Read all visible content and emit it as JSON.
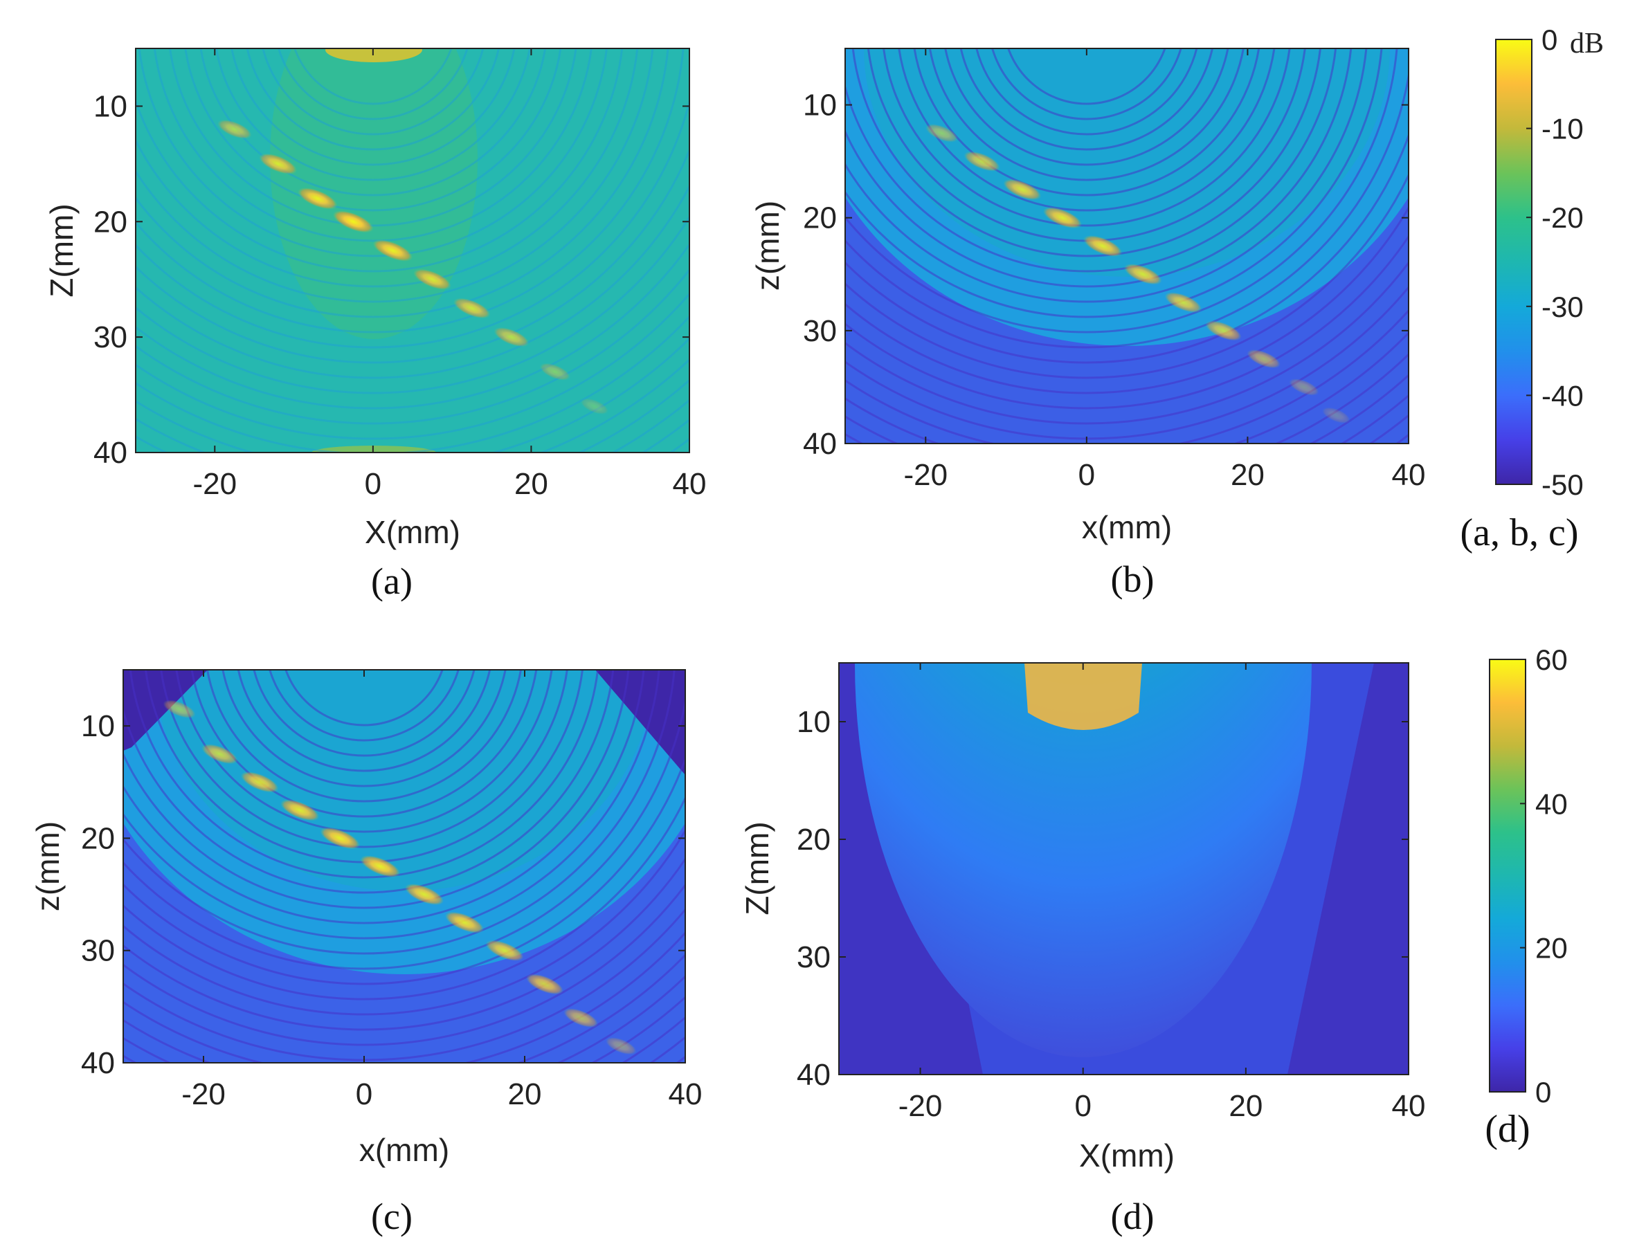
{
  "figure": {
    "panel_label_abc_cbar": "(a, b, c)",
    "panel_label_d_cbar": "(d)",
    "colorbar_abc": {
      "ticks": [
        "0",
        "-10",
        "-20",
        "-30",
        "-40",
        "-50"
      ],
      "unit": "dB",
      "range": [
        -50,
        0
      ]
    },
    "colorbar_d": {
      "ticks": [
        "0",
        "20",
        "40",
        "60"
      ],
      "range": [
        0,
        60
      ]
    }
  },
  "chart_data": [
    {
      "id": "a",
      "type": "heatmap",
      "caption": "(a)",
      "xlabel": "X(mm)",
      "ylabel": "Z(mm)",
      "xlim": [
        -30,
        40
      ],
      "ylim": [
        40,
        5
      ],
      "xticks": [
        -20,
        0,
        20,
        40
      ],
      "yticks": [
        10,
        20,
        30,
        40
      ],
      "background_level_db": -22,
      "reflectors": [
        [
          -17.5,
          12
        ],
        [
          -12,
          15
        ],
        [
          -7,
          18
        ],
        [
          -2.5,
          20
        ],
        [
          2.5,
          22.5
        ],
        [
          7.5,
          25
        ],
        [
          12.5,
          27.5
        ],
        [
          17.5,
          30
        ],
        [
          23,
          33
        ],
        [
          28,
          36
        ]
      ],
      "reflector_peak_db": [
        -8,
        -4,
        -2,
        -1,
        -2,
        -4,
        -5,
        -7,
        -12,
        -16
      ]
    },
    {
      "id": "b",
      "type": "heatmap",
      "caption": "(b)",
      "xlabel": "x(mm)",
      "ylabel": "z(mm)",
      "xlim": [
        -30,
        40
      ],
      "ylim": [
        40,
        5
      ],
      "xticks": [
        -20,
        0,
        20,
        40
      ],
      "yticks": [
        10,
        20,
        30,
        40
      ],
      "background_level_db": -32,
      "reflectors": [
        [
          -18,
          12.5
        ],
        [
          -13,
          15
        ],
        [
          -8,
          17.5
        ],
        [
          -3,
          20
        ],
        [
          2,
          22.5
        ],
        [
          7,
          25
        ],
        [
          12,
          27.5
        ],
        [
          17,
          30
        ],
        [
          22,
          32.5
        ],
        [
          27,
          35
        ],
        [
          31,
          37.5
        ]
      ],
      "reflector_peak_db": [
        -10,
        -6,
        -4,
        -3,
        -3,
        -4,
        -5,
        -6,
        -9,
        -13,
        -17
      ]
    },
    {
      "id": "c",
      "type": "heatmap",
      "caption": "(c)",
      "xlabel": "x(mm)",
      "ylabel": "z(mm)",
      "xlim": [
        -30,
        40
      ],
      "ylim": [
        40,
        5
      ],
      "xticks": [
        -20,
        0,
        20,
        40
      ],
      "yticks": [
        10,
        20,
        30,
        40
      ],
      "background_level_db": -33,
      "reflectors": [
        [
          -23,
          8.5
        ],
        [
          -18,
          12.5
        ],
        [
          -13,
          15
        ],
        [
          -8,
          17.5
        ],
        [
          -3,
          20
        ],
        [
          2,
          22.5
        ],
        [
          7.5,
          25
        ],
        [
          12.5,
          27.5
        ],
        [
          17.5,
          30
        ],
        [
          22.5,
          33
        ],
        [
          27,
          36
        ],
        [
          32,
          38.5
        ]
      ],
      "reflector_peak_db": [
        -10,
        -6,
        -4,
        -3,
        -2,
        -2,
        -3,
        -3,
        -4,
        -5,
        -8,
        -12
      ]
    },
    {
      "id": "d",
      "type": "heatmap",
      "caption": "(d)",
      "xlabel": "X(mm)",
      "ylabel": "Z(mm)",
      "xlim": [
        -30,
        40
      ],
      "ylim": [
        40,
        5
      ],
      "xticks": [
        -20,
        0,
        20,
        40
      ],
      "yticks": [
        10,
        20,
        30,
        40
      ],
      "peak_value": 55,
      "peak_center_x": 0,
      "peak_depth": 5,
      "min_value": 8
    }
  ]
}
